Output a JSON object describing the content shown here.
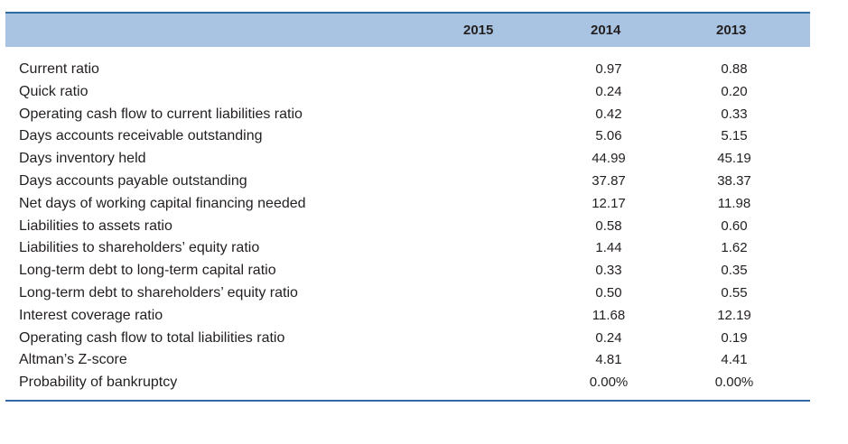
{
  "header": {
    "years": [
      "2015",
      "2014",
      "2013"
    ]
  },
  "rows": [
    {
      "label": "Current ratio",
      "v2015": "",
      "v2014": "0.97",
      "v2013": "0.88"
    },
    {
      "label": "Quick ratio",
      "v2015": "",
      "v2014": "0.24",
      "v2013": "0.20"
    },
    {
      "label": "Operating cash flow to current liabilities ratio",
      "v2015": "",
      "v2014": "0.42",
      "v2013": "0.33"
    },
    {
      "label": "Days accounts receivable outstanding",
      "v2015": "",
      "v2014": "5.06",
      "v2013": "5.15"
    },
    {
      "label": "Days inventory held",
      "v2015": "",
      "v2014": "44.99",
      "v2013": "45.19"
    },
    {
      "label": "Days accounts payable outstanding",
      "v2015": "",
      "v2014": "37.87",
      "v2013": "38.37"
    },
    {
      "label": "Net days of working capital financing needed",
      "v2015": "",
      "v2014": "12.17",
      "v2013": "11.98"
    },
    {
      "label": "Liabilities to assets ratio",
      "v2015": "",
      "v2014": "0.58",
      "v2013": "0.60"
    },
    {
      "label": "Liabilities to shareholders’ equity ratio",
      "v2015": "",
      "v2014": "1.44",
      "v2013": "1.62"
    },
    {
      "label": "Long-term debt to long-term capital ratio",
      "v2015": "",
      "v2014": "0.33",
      "v2013": "0.35"
    },
    {
      "label": "Long-term debt to shareholders’ equity ratio",
      "v2015": "",
      "v2014": "0.50",
      "v2013": "0.55"
    },
    {
      "label": "Interest coverage ratio",
      "v2015": "",
      "v2014": "11.68",
      "v2013": "12.19"
    },
    {
      "label": "Operating cash flow to total liabilities ratio",
      "v2015": "",
      "v2014": "0.24",
      "v2013": "0.19"
    },
    {
      "label": "Altman’s Z-score",
      "v2015": "",
      "v2014": "4.81",
      "v2013": "4.41"
    },
    {
      "label": "Probability of bankruptcy",
      "v2015": "",
      "v2014": "0.00%",
      "v2013": "0.00%"
    }
  ]
}
